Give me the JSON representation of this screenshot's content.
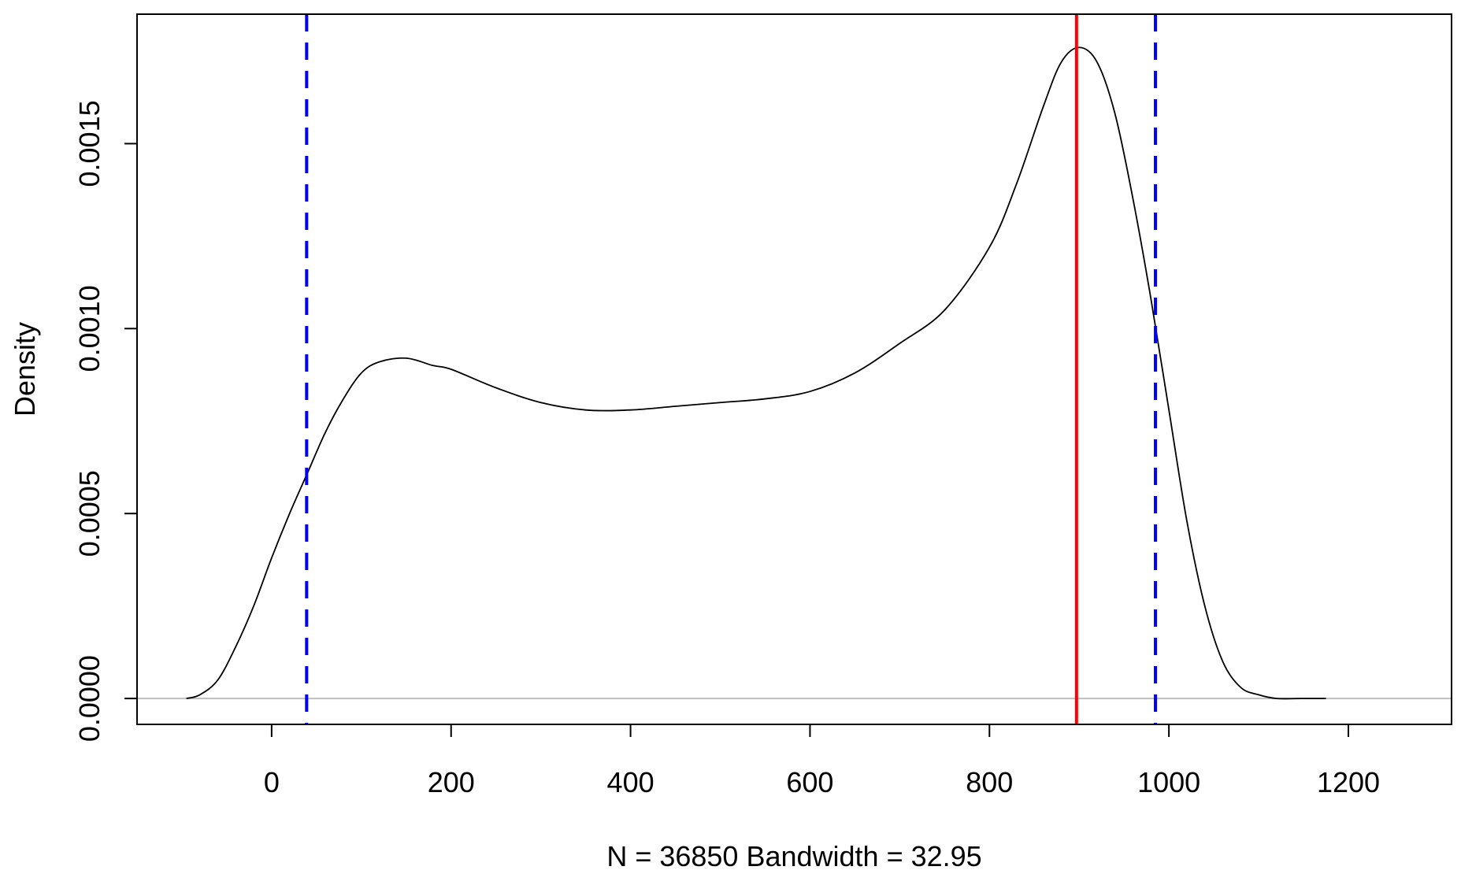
{
  "chart_data": {
    "type": "line",
    "title": "",
    "xlabel": "N = 36850   Bandwidth = 32.95",
    "ylabel": "Density",
    "xlim": [
      -150,
      1315
    ],
    "ylim": [
      -7e-05,
      0.00185
    ],
    "x_ticks": [
      0,
      200,
      400,
      600,
      800,
      1000,
      1200
    ],
    "x_tick_labels": [
      "0",
      "200",
      "400",
      "600",
      "800",
      "1000",
      "1200"
    ],
    "y_ticks": [
      0.0,
      0.0005,
      0.001,
      0.0015
    ],
    "y_tick_labels": [
      "0.0000",
      "0.0005",
      "0.0010",
      "0.0015"
    ],
    "grid": false,
    "legend": "none",
    "series": [
      {
        "color": "#000000",
        "x": [
          -95,
          -80,
          -60,
          -40,
          -20,
          0,
          20,
          40,
          60,
          80,
          100,
          120,
          150,
          180,
          200,
          250,
          300,
          350,
          400,
          450,
          500,
          550,
          600,
          650,
          700,
          750,
          800,
          830,
          860,
          880,
          900,
          920,
          940,
          960,
          980,
          1000,
          1020,
          1040,
          1060,
          1080,
          1100,
          1120,
          1150,
          1175
        ],
        "y": [
          0.0,
          1e-05,
          5e-05,
          0.00014,
          0.00025,
          0.00038,
          0.0005,
          0.00061,
          0.00072,
          0.00081,
          0.00088,
          0.00091,
          0.00092,
          0.0009,
          0.00089,
          0.00084,
          0.0008,
          0.00078,
          0.00078,
          0.00079,
          0.0008,
          0.00081,
          0.00083,
          0.00088,
          0.00096,
          0.00105,
          0.00122,
          0.00139,
          0.0016,
          0.00172,
          0.00176,
          0.00172,
          0.00158,
          0.00135,
          0.00108,
          0.00078,
          0.00048,
          0.00025,
          0.0001,
          3e-05,
          1e-05,
          0.0,
          0.0,
          0.0
        ]
      }
    ],
    "reference_lines": [
      {
        "orientation": "vertical",
        "x": 39,
        "color": "#0000ff",
        "style": "dashed"
      },
      {
        "orientation": "vertical",
        "x": 897,
        "color": "#ff0000",
        "style": "solid"
      },
      {
        "orientation": "vertical",
        "x": 985,
        "color": "#0000ff",
        "style": "dashed"
      },
      {
        "orientation": "horizontal",
        "y": 0.0,
        "color": "#bebebe",
        "style": "solid"
      }
    ]
  }
}
